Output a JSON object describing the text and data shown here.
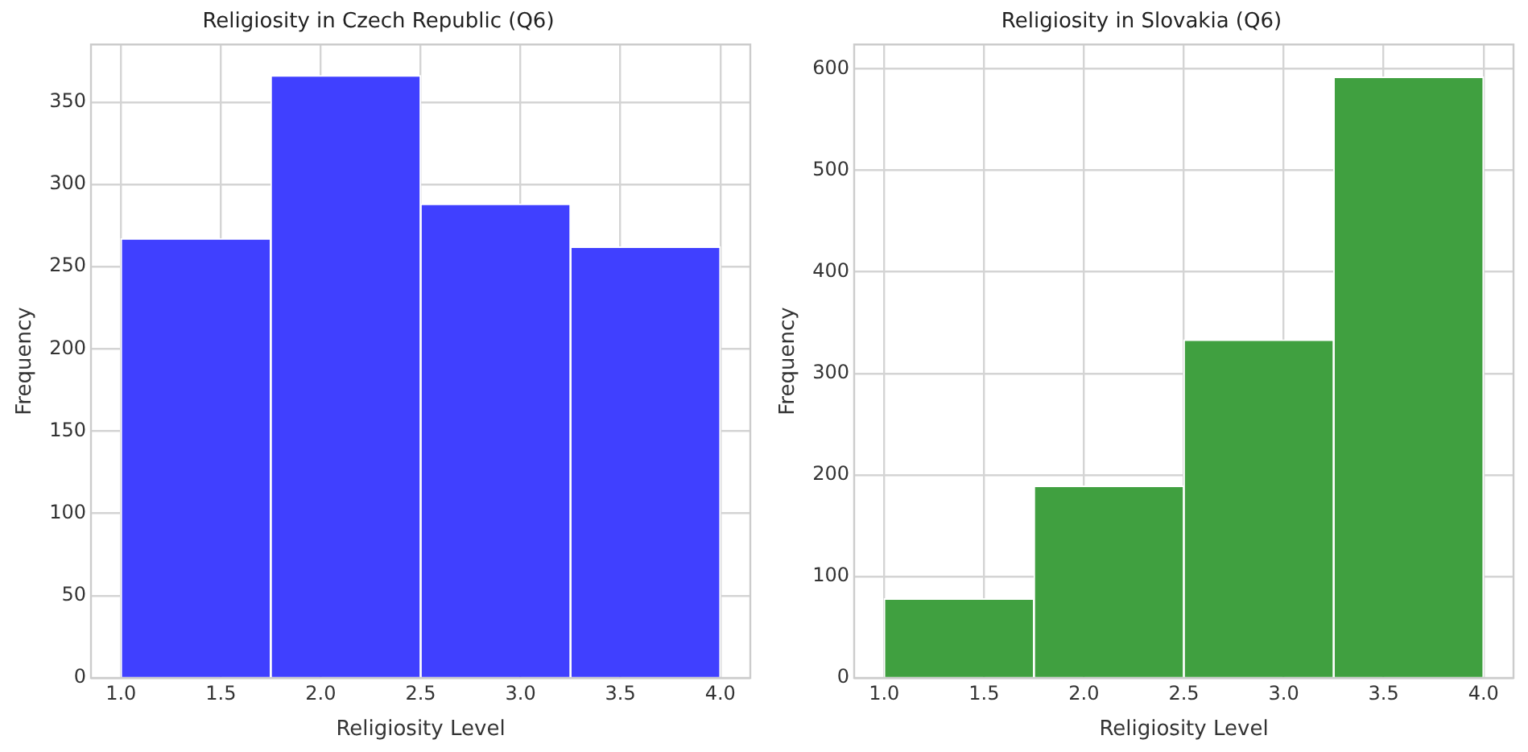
{
  "chart_data": [
    {
      "type": "histogram",
      "title": "Religiosity in Czech Republic (Q6)",
      "xlabel": "Religiosity Level",
      "ylabel": "Frequency",
      "bins": [
        1.0,
        1.75,
        2.5,
        3.25,
        4.0
      ],
      "values": [
        267,
        366,
        288,
        262
      ],
      "color": "#4040ff",
      "xlim": [
        0.85,
        4.15
      ],
      "xticks": [
        {
          "value": 1.0,
          "label": "1.0"
        },
        1.5,
        {
          "value": 2.0,
          "label": "2.0"
        },
        2.5,
        {
          "value": 3.0,
          "label": "3.0"
        },
        3.5,
        {
          "value": 4.0,
          "label": "4.0"
        }
      ],
      "ylim": [
        0,
        385
      ],
      "yticks": [
        0,
        50,
        100,
        150,
        200,
        250,
        300,
        350
      ],
      "grid": true
    },
    {
      "type": "histogram",
      "title": "Religiosity in Slovakia (Q6)",
      "xlabel": "Religiosity Level",
      "ylabel": "Frequency",
      "bins": [
        1.0,
        1.75,
        2.5,
        3.25,
        4.0
      ],
      "values": [
        78,
        189,
        333,
        592
      ],
      "color": "#40a040",
      "xlim": [
        0.85,
        4.15
      ],
      "xticks": [
        {
          "value": 1.0,
          "label": "1.0"
        },
        1.5,
        {
          "value": 2.0,
          "label": "2.0"
        },
        2.5,
        {
          "value": 3.0,
          "label": "3.0"
        },
        3.5,
        {
          "value": 4.0,
          "label": "4.0"
        }
      ],
      "ylim": [
        0,
        624
      ],
      "yticks": [
        0,
        100,
        200,
        300,
        400,
        500,
        600
      ],
      "grid": true
    }
  ]
}
